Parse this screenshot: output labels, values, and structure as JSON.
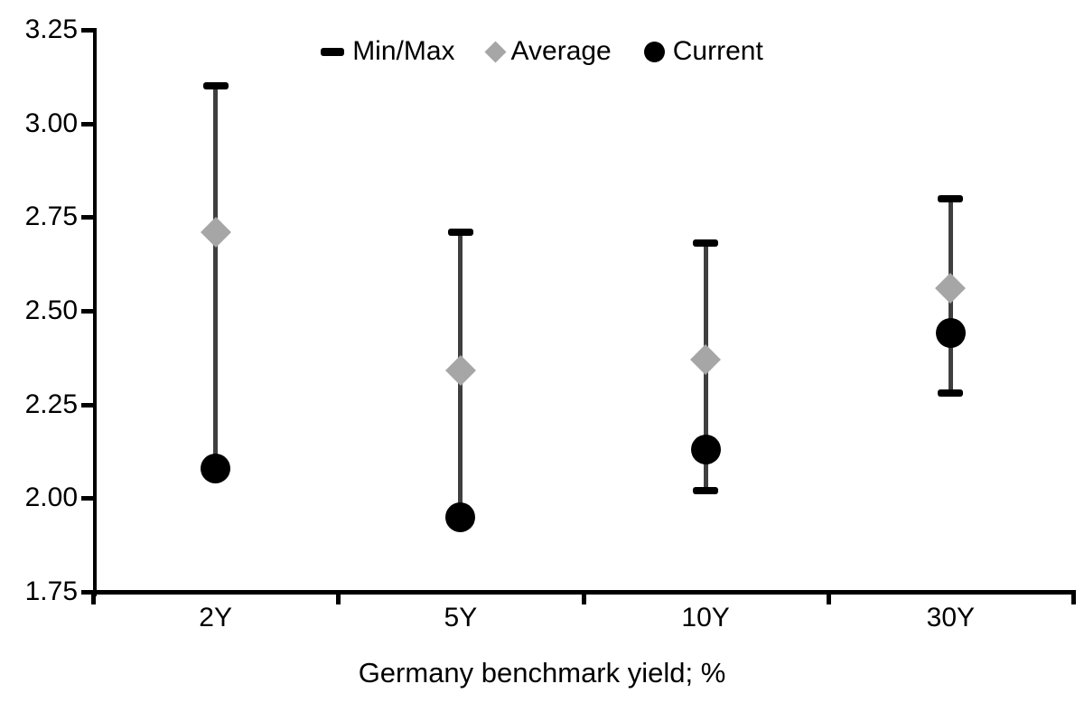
{
  "legend": {
    "items": [
      {
        "label": "Min/Max",
        "marker": "dash-icon"
      },
      {
        "label": "Average",
        "marker": "diamond-icon"
      },
      {
        "label": "Current",
        "marker": "circle-icon"
      }
    ]
  },
  "chart_data": {
    "type": "scatter",
    "subtype": "min-max-range-with-markers",
    "title": "",
    "xlabel": "Germany benchmark yield; %",
    "ylabel": "",
    "categories": [
      "2Y",
      "5Y",
      "10Y",
      "30Y"
    ],
    "series": [
      {
        "name": "Min/Max",
        "role": "range",
        "min": [
          2.08,
          1.95,
          2.02,
          2.28
        ],
        "max": [
          3.1,
          2.71,
          2.68,
          2.8
        ]
      },
      {
        "name": "Average",
        "role": "diamond",
        "values": [
          2.71,
          2.34,
          2.37,
          2.56
        ]
      },
      {
        "name": "Current",
        "role": "circle",
        "values": [
          2.08,
          1.95,
          2.13,
          2.44
        ]
      }
    ],
    "ylim": [
      1.75,
      3.25
    ],
    "ytick_step": 0.25,
    "ytick_labels": [
      "3.25",
      "3.00",
      "2.75",
      "2.50",
      "2.25",
      "2.00",
      "1.75"
    ],
    "grid": false,
    "legend_position": "top-center"
  },
  "colors": {
    "whisker_line": "#3f3f3f",
    "minmax_marker": "#000000",
    "average_marker": "#a6a6a6",
    "current_marker": "#000000",
    "axis": "#000000",
    "text": "#000000",
    "background": "#ffffff"
  }
}
